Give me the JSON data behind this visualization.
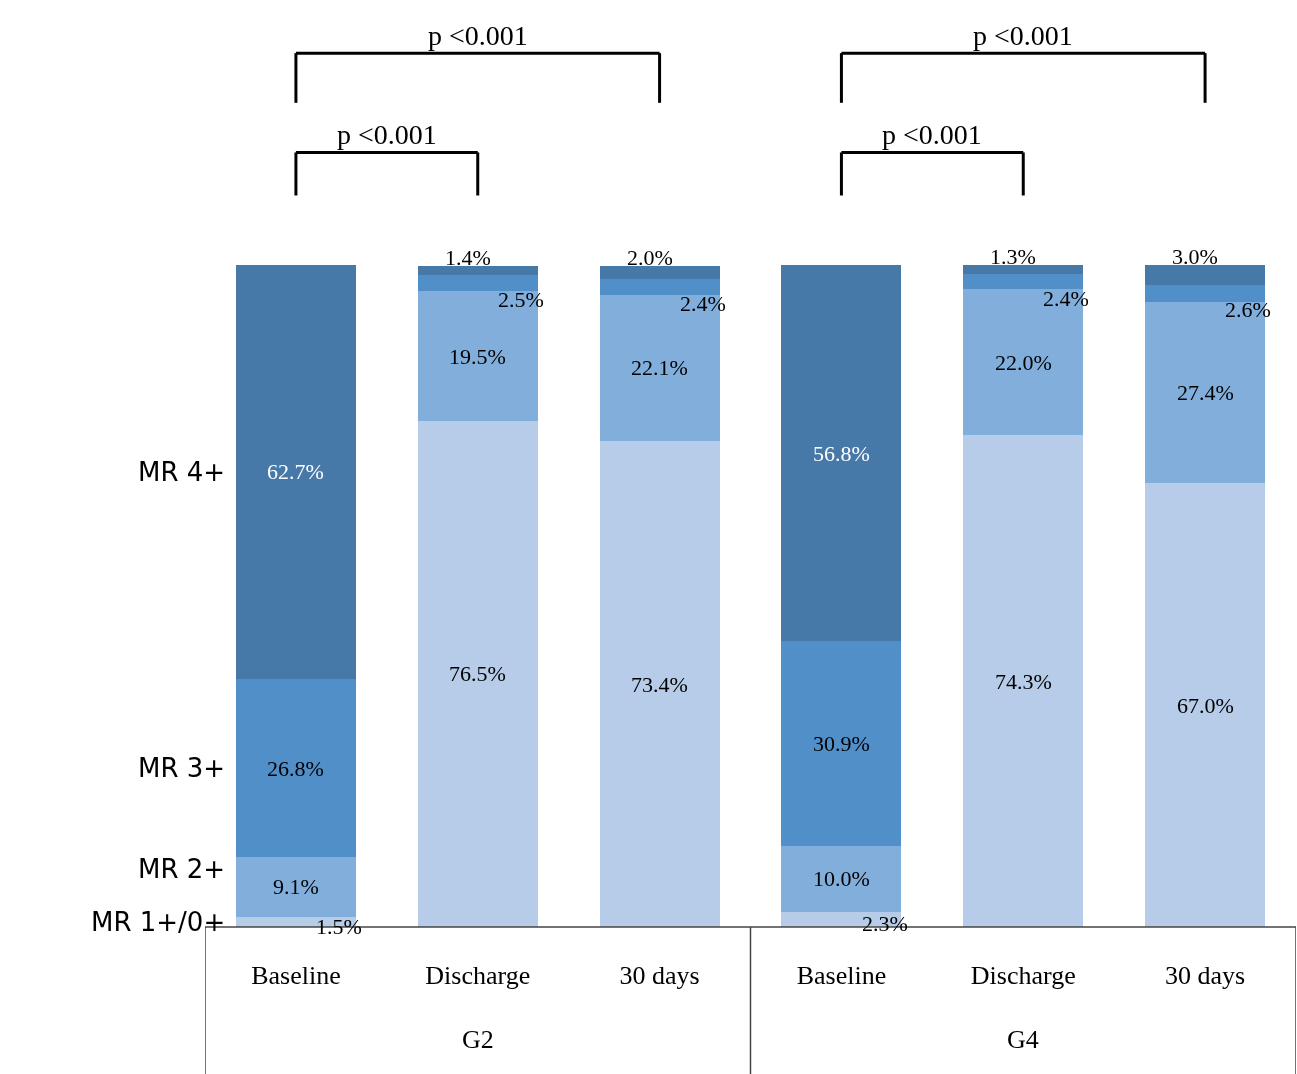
{
  "chart_data": {
    "type": "bar",
    "stacked": true,
    "legend": false,
    "categories": [
      "Baseline",
      "Discharge",
      "30 days",
      "Baseline",
      "Discharge",
      "30 days"
    ],
    "series": [
      {
        "name": "MR 1+/0+",
        "color": "#b7cce8",
        "values": [
          1.5,
          76.5,
          73.4,
          2.3,
          74.3,
          67.0
        ],
        "value_labels": [
          "1.5%",
          "76.5%",
          "73.4%",
          "2.3%",
          "74.3%",
          "67.0%"
        ]
      },
      {
        "name": "MR 2+",
        "color": "#82aedc",
        "values": [
          9.1,
          19.5,
          22.1,
          10.0,
          22.0,
          27.4
        ],
        "value_labels": [
          "9.1%",
          "19.5%",
          "22.1%",
          "10.0%",
          "22.0%",
          "27.4%"
        ]
      },
      {
        "name": "MR 3+",
        "color": "#508fc8",
        "values": [
          26.8,
          2.5,
          2.4,
          30.9,
          2.4,
          2.6
        ],
        "value_labels": [
          "26.8%",
          "2.5%",
          "2.4%",
          "30.9%",
          "2.4%",
          "2.6%"
        ]
      },
      {
        "name": "MR 4+",
        "color": "#4679a8",
        "values": [
          62.7,
          1.4,
          2.0,
          56.8,
          1.3,
          3.0
        ],
        "value_labels": [
          "62.7%",
          "1.4%",
          "2.0%",
          "56.8%",
          "1.3%",
          "3.0%"
        ]
      }
    ],
    "annotations": [
      "p <0.001",
      "p <0.001",
      "p <0.001",
      "p <0.001",
      "G2",
      "G4"
    ]
  }
}
